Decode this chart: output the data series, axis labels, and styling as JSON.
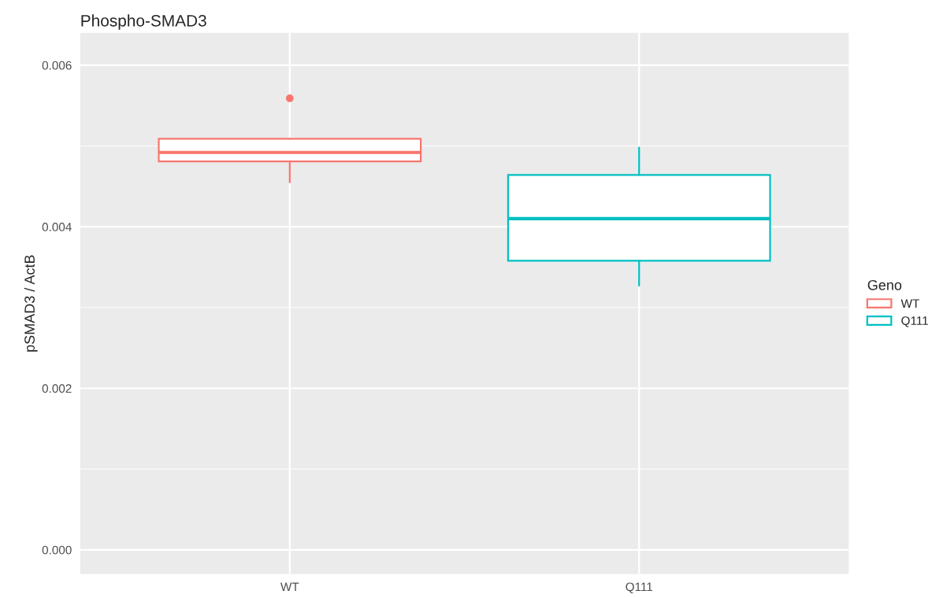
{
  "chart_data": {
    "type": "box",
    "title": "Phospho-SMAD3",
    "ylabel": "pSMAD3 / ActB",
    "legend_title": "Geno",
    "categories": [
      "WT",
      "Q111"
    ],
    "series": [
      {
        "name": "WT",
        "color": "#f8766d",
        "boxes": [
          {
            "low": 0.00455,
            "q1": 0.00481,
            "median": 0.00492,
            "q3": 0.00509,
            "high": 0.00509,
            "outliers": [
              0.00559
            ]
          },
          null
        ]
      },
      {
        "name": "Q111",
        "color": "#00bfc4",
        "boxes": [
          null,
          {
            "low": 0.00327,
            "q1": 0.00358,
            "median": 0.0041,
            "q3": 0.00464,
            "high": 0.00498
          }
        ]
      }
    ],
    "ylim": [
      -0.0003,
      0.0064
    ],
    "yticks": [
      {
        "value": 0,
        "label": "0.000"
      },
      {
        "value": 0.002,
        "label": "0.002"
      },
      {
        "value": 0.004,
        "label": "0.004"
      },
      {
        "value": 0.006,
        "label": "0.006"
      }
    ],
    "grid": true,
    "legend": "right"
  }
}
